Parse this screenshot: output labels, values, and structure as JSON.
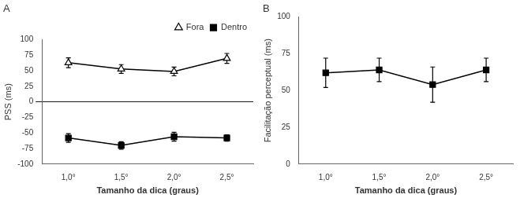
{
  "chart_data": [
    {
      "type": "line",
      "title": "A",
      "categories": [
        "1,0°",
        "1,5°",
        "2,0°",
        "2,5°"
      ],
      "series": [
        {
          "name": "Fora",
          "color": "#000000",
          "marker": "triangle-open",
          "values": [
            63,
            53,
            49,
            70
          ],
          "yerr": [
            8,
            7,
            7,
            8
          ]
        },
        {
          "name": "Dentro",
          "color": "#000000",
          "marker": "square",
          "values": [
            -58,
            -70,
            -56,
            -58
          ],
          "yerr": [
            7,
            6,
            7,
            5
          ]
        }
      ],
      "xlabel": "Tamanho da dica (graus)",
      "ylabel": "PSS (ms)",
      "ylim": [
        -100,
        100
      ],
      "yticks": [
        -100,
        -75,
        -50,
        -25,
        0,
        25,
        50,
        75,
        100
      ],
      "grid": false,
      "legend": "upper right"
    },
    {
      "type": "line",
      "title": "B",
      "categories": [
        "1,0°",
        "1,5°",
        "2,0°",
        "2,5°"
      ],
      "series": [
        {
          "color": "#000000",
          "marker": "square",
          "values": [
            62,
            64,
            54,
            64
          ],
          "yerr": [
            10,
            8,
            12,
            8
          ]
        }
      ],
      "xlabel": "Tamanho da dica (graus)",
      "ylabel": "Facilitação perceptual (ms)",
      "ylim": [
        0,
        100
      ],
      "yticks": [
        0,
        25,
        50,
        75,
        100
      ],
      "grid": false
    }
  ]
}
